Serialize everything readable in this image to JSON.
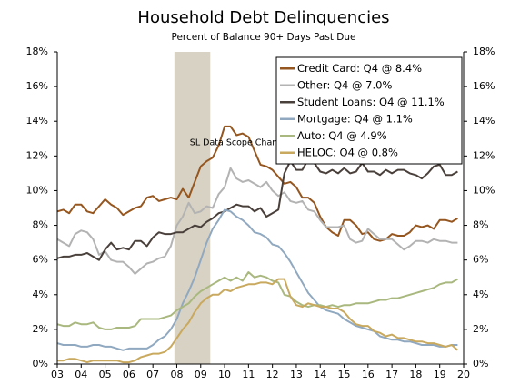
{
  "chart_data": {
    "type": "line",
    "title": "Household Debt Delinquencies",
    "subtitle": "Percent of Balance 90+ Days Past Due",
    "annotation": "SL Data Scope Change",
    "shaded_range": [
      2007.9,
      2009.4
    ],
    "shade_color": "#d8d2c4",
    "legend": "upper right",
    "grid": false,
    "xlim": [
      2003,
      2020
    ],
    "xticks": [
      {
        "value": 2003,
        "label": "03"
      },
      {
        "value": 2004,
        "label": "04"
      },
      {
        "value": 2005,
        "label": "05"
      },
      {
        "value": 2006,
        "label": "06"
      },
      {
        "value": 2007,
        "label": "07"
      },
      {
        "value": 2008,
        "label": "08"
      },
      {
        "value": 2009,
        "label": "09"
      },
      {
        "value": 2010,
        "label": "10"
      },
      {
        "value": 2011,
        "label": "11"
      },
      {
        "value": 2012,
        "label": "12"
      },
      {
        "value": 2013,
        "label": "13"
      },
      {
        "value": 2014,
        "label": "14"
      },
      {
        "value": 2015,
        "label": "15"
      },
      {
        "value": 2016,
        "label": "16"
      },
      {
        "value": 2017,
        "label": "17"
      },
      {
        "value": 2018,
        "label": "18"
      },
      {
        "value": 2019,
        "label": "19"
      },
      {
        "value": 2020,
        "label": "20"
      }
    ],
    "ylim": [
      0,
      18
    ],
    "yticks": [
      {
        "value": 0,
        "label": "0%"
      },
      {
        "value": 2,
        "label": "2%"
      },
      {
        "value": 4,
        "label": "4%"
      },
      {
        "value": 6,
        "label": "6%"
      },
      {
        "value": 8,
        "label": "8%"
      },
      {
        "value": 10,
        "label": "10%"
      },
      {
        "value": 12,
        "label": "12%"
      },
      {
        "value": 14,
        "label": "14%"
      },
      {
        "value": 16,
        "label": "16%"
      },
      {
        "value": 18,
        "label": "18%"
      }
    ],
    "y2lim": [
      0,
      18
    ],
    "y2ticks": [
      {
        "value": 0,
        "label": "0%"
      },
      {
        "value": 2,
        "label": "2%"
      },
      {
        "value": 4,
        "label": "4%"
      },
      {
        "value": 6,
        "label": "6%"
      },
      {
        "value": 8,
        "label": "8%"
      },
      {
        "value": 10,
        "label": "10%"
      },
      {
        "value": 12,
        "label": "12%"
      },
      {
        "value": 14,
        "label": "14%"
      },
      {
        "value": 16,
        "label": "16%"
      },
      {
        "value": 18,
        "label": "18%"
      }
    ],
    "x": [
      2003,
      2003.25,
      2003.5,
      2003.75,
      2004,
      2004.25,
      2004.5,
      2004.75,
      2005,
      2005.25,
      2005.5,
      2005.75,
      2006,
      2006.25,
      2006.5,
      2006.75,
      2007,
      2007.25,
      2007.5,
      2007.75,
      2008,
      2008.25,
      2008.5,
      2008.75,
      2009,
      2009.25,
      2009.5,
      2009.75,
      2010,
      2010.25,
      2010.5,
      2010.75,
      2011,
      2011.25,
      2011.5,
      2011.75,
      2012,
      2012.25,
      2012.5,
      2012.75,
      2013,
      2013.25,
      2013.5,
      2013.75,
      2014,
      2014.25,
      2014.5,
      2014.75,
      2015,
      2015.25,
      2015.5,
      2015.75,
      2016,
      2016.25,
      2016.5,
      2016.75,
      2017,
      2017.25,
      2017.5,
      2017.75,
      2018,
      2018.25,
      2018.5,
      2018.75,
      2019,
      2019.25,
      2019.5,
      2019.75
    ],
    "series": [
      {
        "name": "Credit Card: Q4 @ 8.4%",
        "color": "#95561f",
        "values": [
          8.8,
          8.9,
          8.7,
          9.2,
          9.2,
          8.8,
          8.7,
          9.1,
          9.5,
          9.2,
          9.0,
          8.6,
          8.8,
          9.0,
          9.1,
          9.6,
          9.7,
          9.4,
          9.5,
          9.6,
          9.5,
          10.1,
          9.6,
          10.5,
          11.4,
          11.7,
          11.9,
          12.6,
          13.7,
          13.7,
          13.2,
          13.3,
          13.1,
          12.3,
          11.5,
          11.4,
          11.2,
          10.8,
          10.4,
          10.5,
          10.2,
          9.6,
          9.6,
          9.3,
          8.5,
          7.9,
          7.6,
          7.4,
          8.3,
          8.3,
          8.0,
          7.5,
          7.6,
          7.2,
          7.1,
          7.2,
          7.5,
          7.4,
          7.4,
          7.6,
          8.0,
          7.9,
          8.0,
          7.8,
          8.3,
          8.3,
          8.2,
          8.4
        ]
      },
      {
        "name": "Other: Q4 @ 7.0%",
        "color": "#b3b3b3",
        "values": [
          7.2,
          7.0,
          6.8,
          7.5,
          7.7,
          7.6,
          7.2,
          6.3,
          6.5,
          6.0,
          5.9,
          5.9,
          5.6,
          5.2,
          5.5,
          5.8,
          5.9,
          6.1,
          6.2,
          6.8,
          8.0,
          8.5,
          9.3,
          8.7,
          8.8,
          9.1,
          9.0,
          9.8,
          10.2,
          11.3,
          10.7,
          10.5,
          10.6,
          10.4,
          10.2,
          10.5,
          10.0,
          9.7,
          9.9,
          9.4,
          9.3,
          9.4,
          8.9,
          8.8,
          8.3,
          7.9,
          7.9,
          7.9,
          8.0,
          7.2,
          7.0,
          7.1,
          7.8,
          7.5,
          7.2,
          7.2,
          7.2,
          6.9,
          6.6,
          6.8,
          7.1,
          7.1,
          7.0,
          7.2,
          7.1,
          7.1,
          7.0,
          7.0
        ]
      },
      {
        "name": "Student Loans: Q4 @ 11.1%",
        "color": "#4a403b",
        "values": [
          6.1,
          6.2,
          6.2,
          6.3,
          6.3,
          6.4,
          6.2,
          6.0,
          6.6,
          7.0,
          6.6,
          6.7,
          6.6,
          7.1,
          7.1,
          6.8,
          7.3,
          7.6,
          7.5,
          7.5,
          7.6,
          7.6,
          7.8,
          8.0,
          7.9,
          8.2,
          8.4,
          8.7,
          8.8,
          9.0,
          9.2,
          9.1,
          9.1,
          8.8,
          9.0,
          8.5,
          8.7,
          8.9,
          11.0,
          11.7,
          11.2,
          11.2,
          11.8,
          11.6,
          11.1,
          11.0,
          11.2,
          11.0,
          11.3,
          11.0,
          11.1,
          11.6,
          11.1,
          11.1,
          10.9,
          11.2,
          11.0,
          11.2,
          11.2,
          11.0,
          10.9,
          10.7,
          11.0,
          11.4,
          11.5,
          10.9,
          10.9,
          11.1
        ]
      },
      {
        "name": "Mortgage: Q4 @ 1.1%",
        "color": "#90a9c0",
        "values": [
          1.2,
          1.1,
          1.1,
          1.1,
          1.0,
          1.0,
          1.1,
          1.1,
          1.0,
          1.0,
          0.9,
          0.8,
          0.9,
          0.9,
          0.9,
          0.9,
          1.1,
          1.4,
          1.6,
          2.0,
          2.6,
          3.5,
          4.2,
          5.0,
          6.0,
          7.0,
          7.8,
          8.3,
          8.9,
          8.8,
          8.5,
          8.3,
          8.0,
          7.6,
          7.5,
          7.3,
          6.9,
          6.8,
          6.4,
          5.9,
          5.3,
          4.7,
          4.1,
          3.7,
          3.3,
          3.1,
          3.0,
          2.9,
          2.6,
          2.4,
          2.2,
          2.1,
          2.0,
          1.9,
          1.6,
          1.5,
          1.4,
          1.4,
          1.3,
          1.3,
          1.2,
          1.1,
          1.1,
          1.1,
          1.0,
          1.0,
          1.1,
          1.1
        ]
      },
      {
        "name": "Auto: Q4 @ 4.9%",
        "color": "#a9b87e",
        "values": [
          2.3,
          2.2,
          2.2,
          2.4,
          2.3,
          2.3,
          2.4,
          2.1,
          2.0,
          2.0,
          2.1,
          2.1,
          2.1,
          2.2,
          2.6,
          2.6,
          2.6,
          2.6,
          2.7,
          2.8,
          3.1,
          3.3,
          3.5,
          3.9,
          4.2,
          4.4,
          4.6,
          4.8,
          5.0,
          4.8,
          5.0,
          4.8,
          5.3,
          5.0,
          5.1,
          5.0,
          4.8,
          4.7,
          4.0,
          3.9,
          3.6,
          3.4,
          3.3,
          3.4,
          3.4,
          3.3,
          3.4,
          3.3,
          3.4,
          3.4,
          3.5,
          3.5,
          3.5,
          3.6,
          3.7,
          3.7,
          3.8,
          3.8,
          3.9,
          4.0,
          4.1,
          4.2,
          4.3,
          4.4,
          4.6,
          4.7,
          4.7,
          4.9
        ]
      },
      {
        "name": "HELOC: Q4 @ 0.8%",
        "color": "#c9a95e",
        "values": [
          0.2,
          0.2,
          0.3,
          0.3,
          0.2,
          0.1,
          0.2,
          0.2,
          0.2,
          0.2,
          0.2,
          0.1,
          0.1,
          0.2,
          0.4,
          0.5,
          0.6,
          0.6,
          0.7,
          1.0,
          1.5,
          2.0,
          2.4,
          3.0,
          3.5,
          3.8,
          4.0,
          4.0,
          4.3,
          4.2,
          4.4,
          4.5,
          4.6,
          4.6,
          4.7,
          4.7,
          4.6,
          4.9,
          4.9,
          3.9,
          3.4,
          3.3,
          3.5,
          3.4,
          3.3,
          3.3,
          3.2,
          3.2,
          3.0,
          2.6,
          2.3,
          2.2,
          2.2,
          1.9,
          1.8,
          1.6,
          1.7,
          1.5,
          1.5,
          1.4,
          1.3,
          1.3,
          1.2,
          1.2,
          1.1,
          1.0,
          1.1,
          0.8
        ]
      }
    ]
  }
}
